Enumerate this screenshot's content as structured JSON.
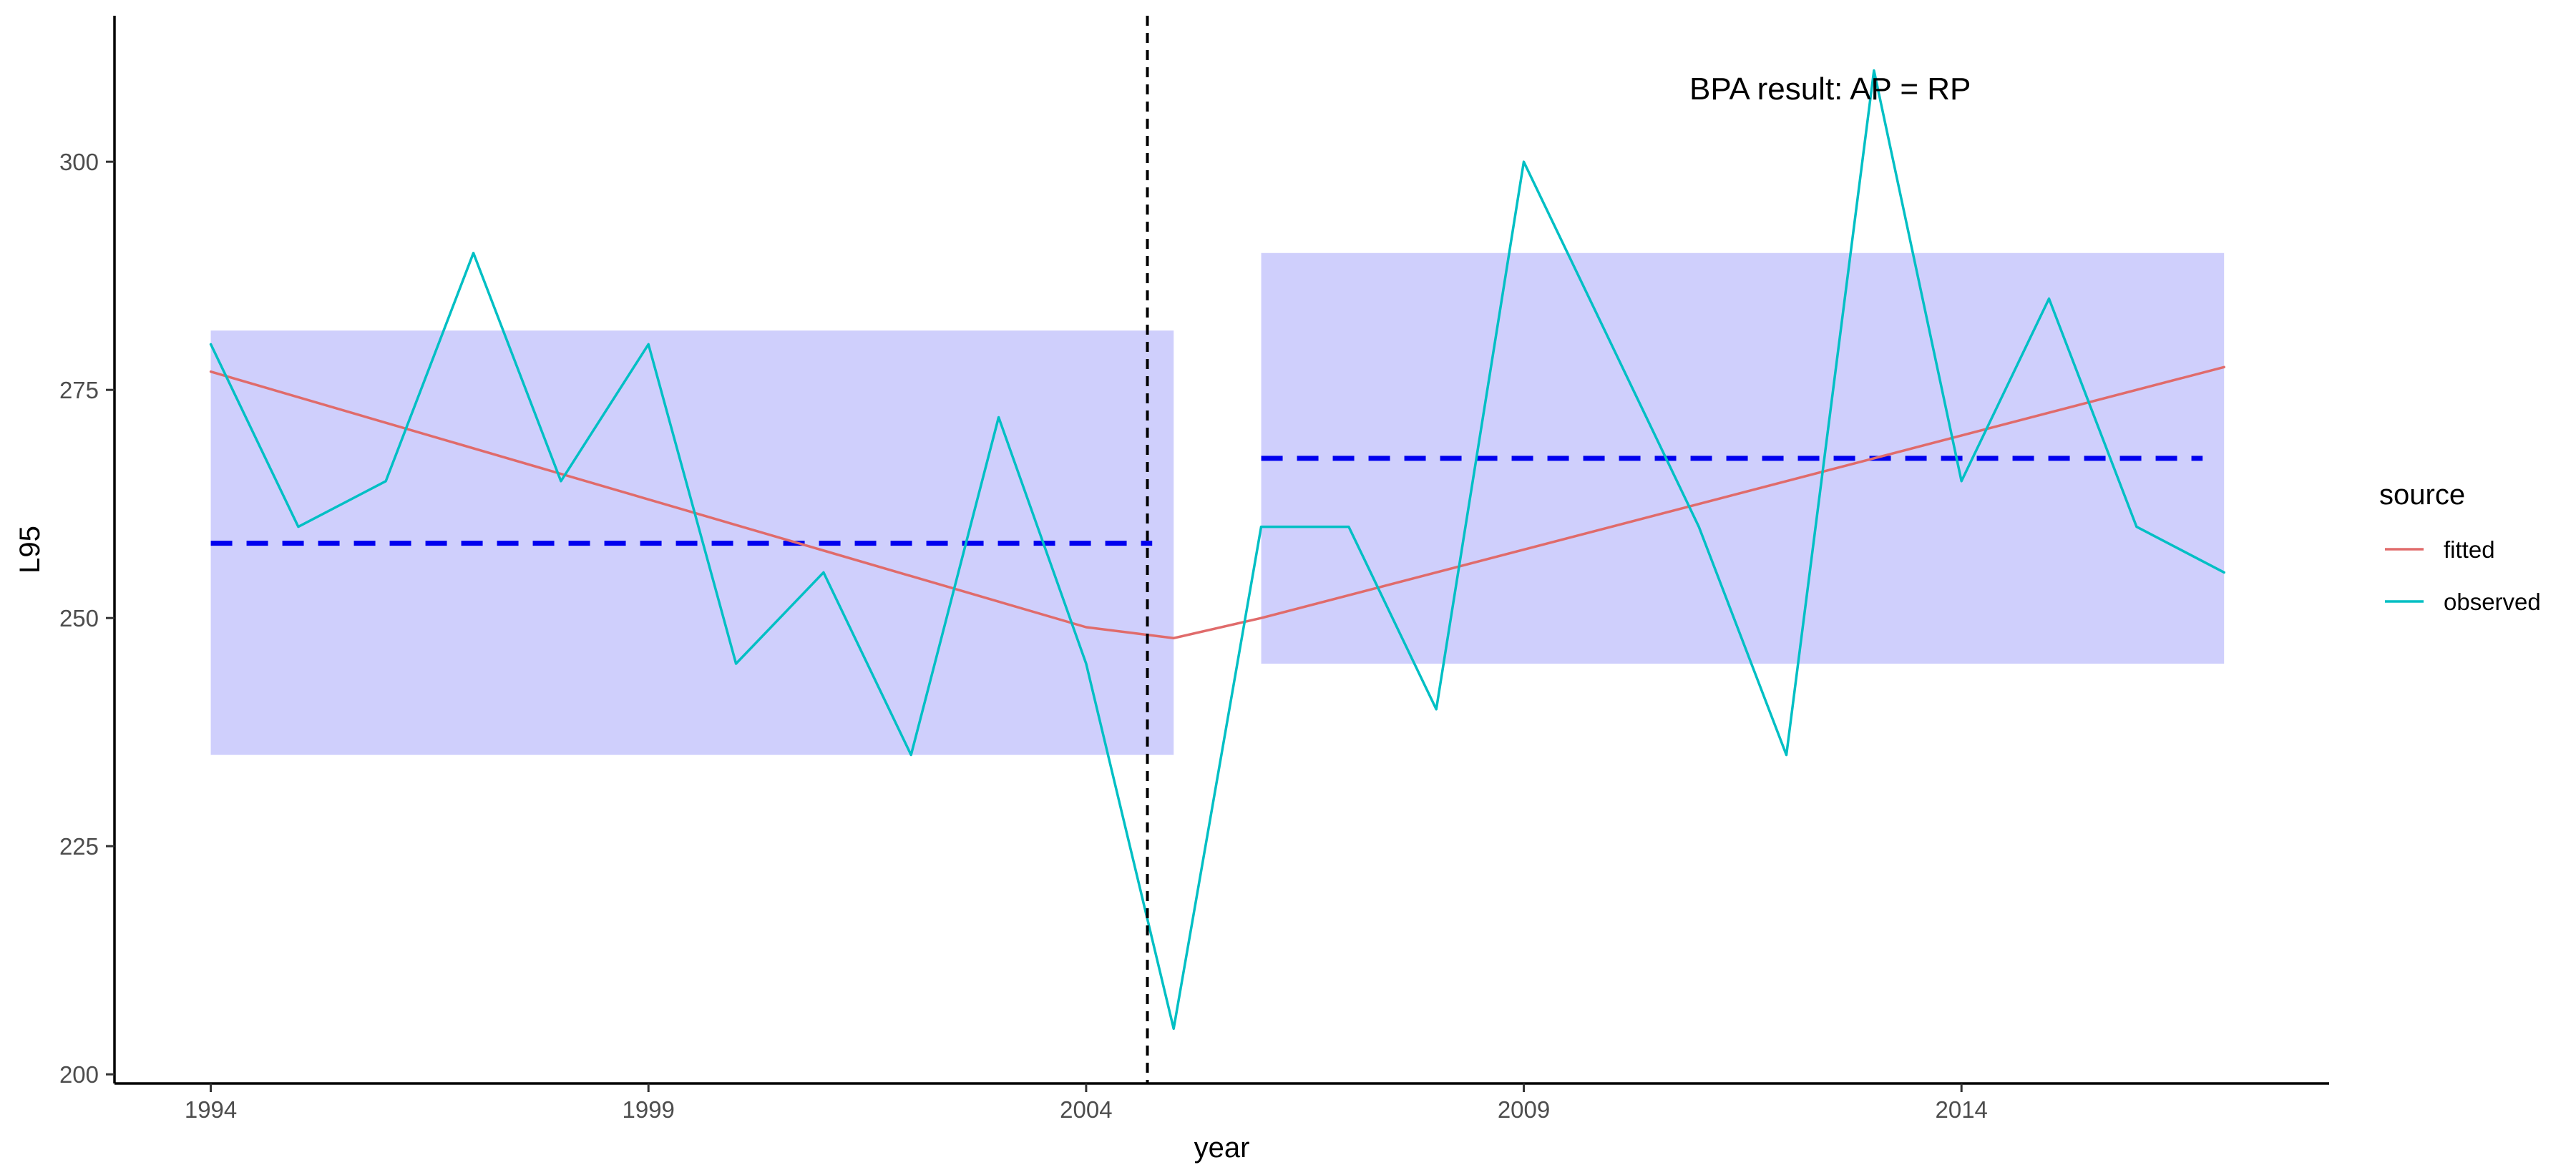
{
  "chart_data": {
    "type": "line",
    "title": "",
    "xlabel": "year",
    "ylabel": "L95",
    "xlim": [
      1992.9,
      2018.2
    ],
    "ylim": [
      199,
      316
    ],
    "x_ticks": [
      1994,
      1999,
      2004,
      2009,
      2014
    ],
    "x_tick_labels": [
      "1994",
      "1999",
      "2004",
      "2009",
      "2014"
    ],
    "y_ticks": [
      200,
      225,
      250,
      275,
      300
    ],
    "y_tick_labels": [
      "200",
      "225",
      "250",
      "275",
      "300"
    ],
    "grid": false,
    "legend": {
      "title": "source",
      "position": "right",
      "entries": [
        {
          "label": "fitted",
          "color": "#e06b6b"
        },
        {
          "label": "observed",
          "color": "#00bfc4"
        }
      ]
    },
    "series": [
      {
        "name": "fitted",
        "color": "#e06b6b",
        "x": [
          1994,
          2004,
          2005,
          2006,
          2017
        ],
        "y": [
          277,
          249,
          247.8,
          250,
          277.5
        ]
      },
      {
        "name": "observed",
        "color": "#00bfc4",
        "x": [
          1994,
          1995,
          1996,
          1997,
          1998,
          1999,
          2000,
          2001,
          2002,
          2003,
          2004,
          2005,
          2006,
          2007,
          2008,
          2009,
          2010,
          2011,
          2012,
          2013,
          2014,
          2015,
          2016,
          2017
        ],
        "y": [
          280,
          260,
          265,
          290,
          265,
          280,
          245,
          255,
          235,
          272,
          245,
          205,
          260,
          260,
          240,
          300,
          280,
          260,
          235,
          310,
          265,
          285,
          260,
          255
        ]
      }
    ],
    "overlap_color": "#0a8fc4",
    "periods": [
      {
        "x_start": 1994,
        "x_end": 2005,
        "mean": 258.2,
        "lower": 235,
        "upper": 281.5
      },
      {
        "x_start": 2006,
        "x_end": 2017,
        "mean": 267.5,
        "lower": 245,
        "upper": 290
      }
    ],
    "band_color": "#cfcffc",
    "mean_line_color": "#0000ee",
    "breakpoint_x": 2004.7,
    "annotations": [
      {
        "text": "BPA result: AP = RP",
        "x": 2012.5,
        "y": 308
      }
    ]
  }
}
